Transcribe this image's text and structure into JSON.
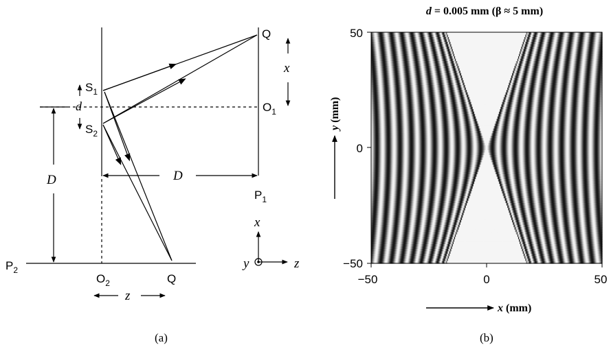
{
  "panel_a": {
    "caption": "(a)",
    "labels": {
      "Q_top": "Q",
      "x": "x",
      "S1": "S",
      "S1_sub": "1",
      "d": "d",
      "O1": "O",
      "O1_sub": "1",
      "S2": "S",
      "S2_sub": "2",
      "D_horizontal": "D",
      "D_vertical": "D",
      "P1": "P",
      "P1_sub": "1",
      "P2": "P",
      "P2_sub": "2",
      "O2": "O",
      "O2_sub": "2",
      "Q_bottom": "Q",
      "z": "z",
      "axis_x": "x",
      "axis_y": "y",
      "axis_z": "z"
    }
  },
  "panel_b": {
    "caption": "(b)",
    "title_d": "d",
    "title_rest": " = 0.005 mm  (β ≈ 5 mm)",
    "xlabel_var": "x",
    "xlabel_unit": " (mm)",
    "ylabel_var": "y",
    "ylabel_unit": " (mm)",
    "x_ticks": [
      "−50",
      "0",
      "50"
    ],
    "y_ticks": [
      "50",
      "0",
      "−50"
    ]
  },
  "chart_data": {
    "type": "heatmap",
    "title": "d = 0.005 mm (β ≈ 5 mm)",
    "xlabel": "x (mm)",
    "ylabel": "y (mm)",
    "xlim": [
      -50,
      50
    ],
    "ylim": [
      -50,
      50
    ],
    "x_tick_values": [
      -50,
      0,
      50
    ],
    "y_tick_values": [
      -50,
      0,
      50
    ],
    "fringe_period_mm": 5,
    "grid": false
  }
}
